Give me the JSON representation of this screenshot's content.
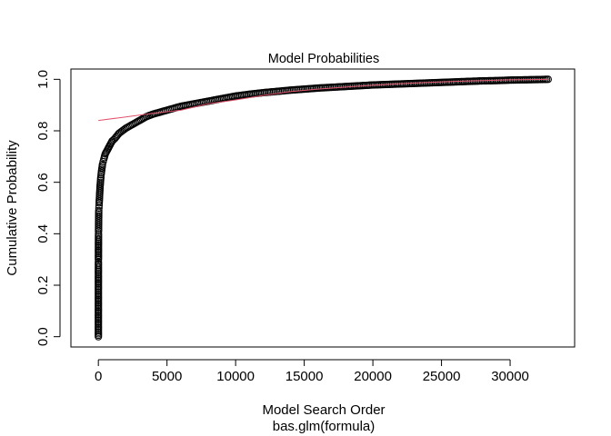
{
  "chart_data": {
    "type": "scatter",
    "title": "Model Probabilities",
    "xlabel": "Model Search Order",
    "sublabel": "bas.glm(formula)",
    "ylabel": "Cumulative Probability",
    "xlim": [
      -2000,
      34700
    ],
    "ylim": [
      -0.04,
      1.04
    ],
    "xticks": [
      0,
      5000,
      10000,
      15000,
      20000,
      25000,
      30000
    ],
    "xtick_labels": [
      "0",
      "5000",
      "10000",
      "15000",
      "20000",
      "25000",
      "30000"
    ],
    "yticks": [
      0.0,
      0.2,
      0.4,
      0.6,
      0.8,
      1.0
    ],
    "ytick_labels": [
      "0.0",
      "0.2",
      "0.4",
      "0.6",
      "0.8",
      "1.0"
    ],
    "grid": false,
    "series": [
      {
        "marker": "open-circle",
        "color": "#000000",
        "x": [
          1,
          2,
          3,
          4,
          5,
          6,
          8,
          10,
          12,
          15,
          20,
          25,
          30,
          40,
          50,
          60,
          80,
          100,
          120,
          150,
          180,
          200,
          250,
          300,
          350,
          400,
          500,
          600,
          700,
          800,
          1000,
          1200,
          1500,
          2000,
          2500,
          3000,
          3500,
          4000,
          5000,
          6000,
          7000,
          8000,
          9000,
          10000,
          11000,
          12000,
          13000,
          14000,
          15000,
          16000,
          17000,
          18000,
          19000,
          20000,
          21000,
          22000,
          23000,
          24000,
          25000,
          26000,
          27000,
          28000,
          29000,
          30000,
          31000,
          32000,
          32768
        ],
        "y": [
          0.0,
          0.155,
          0.265,
          0.29,
          0.3,
          0.34,
          0.38,
          0.4,
          0.41,
          0.43,
          0.45,
          0.47,
          0.49,
          0.5,
          0.51,
          0.52,
          0.54,
          0.56,
          0.58,
          0.6,
          0.62,
          0.63,
          0.65,
          0.67,
          0.68,
          0.69,
          0.71,
          0.72,
          0.73,
          0.74,
          0.76,
          0.77,
          0.79,
          0.81,
          0.825,
          0.84,
          0.855,
          0.865,
          0.88,
          0.895,
          0.905,
          0.915,
          0.925,
          0.935,
          0.942,
          0.948,
          0.953,
          0.958,
          0.962,
          0.966,
          0.969,
          0.972,
          0.975,
          0.978,
          0.98,
          0.982,
          0.984,
          0.986,
          0.988,
          0.99,
          0.992,
          0.994,
          0.995,
          0.997,
          0.998,
          0.999,
          1.0
        ]
      }
    ],
    "fit_line": {
      "color": "#DF536B",
      "x": [
        0,
        2000,
        4000,
        6000,
        8000,
        10000,
        12000,
        14000,
        16000,
        18000,
        20000,
        22000,
        24000,
        26000,
        28000,
        30000,
        32768
      ],
      "y": [
        0.84,
        0.854,
        0.868,
        0.88,
        0.905,
        0.92,
        0.937,
        0.952,
        0.962,
        0.97,
        0.977,
        0.983,
        0.988,
        0.992,
        0.995,
        0.998,
        1.0
      ]
    }
  }
}
